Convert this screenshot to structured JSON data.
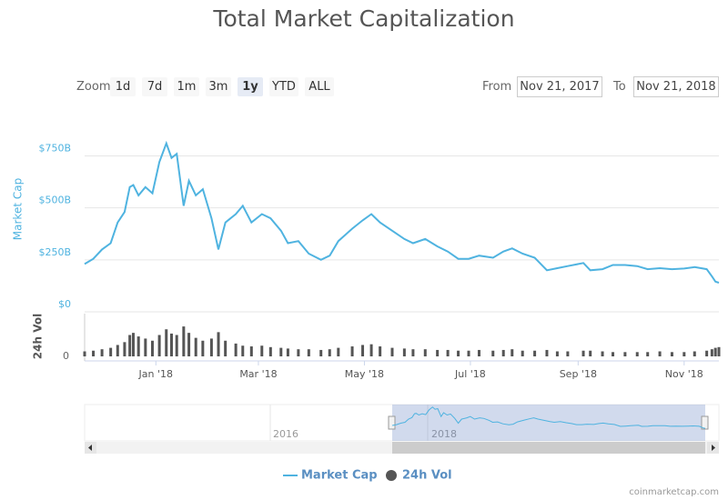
{
  "chart_data": [
    {
      "type": "line",
      "title": "Total Market Capitalization",
      "ylabel": "Market Cap",
      "grid": true,
      "xlim": [
        "2017-11-21",
        "2018-11-21"
      ],
      "ylim": [
        0,
        975
      ],
      "yticks": [
        {
          "value": 0,
          "label": "$0"
        },
        {
          "value": 250,
          "label": "$250B"
        },
        {
          "value": 500,
          "label": "$500B"
        },
        {
          "value": 750,
          "label": "$750B"
        }
      ],
      "x": [
        "2017-11-21",
        "2017-11-26",
        "2017-12-01",
        "2017-12-06",
        "2017-12-10",
        "2017-12-14",
        "2017-12-17",
        "2017-12-19",
        "2017-12-22",
        "2017-12-26",
        "2017-12-30",
        "2018-01-03",
        "2018-01-07",
        "2018-01-10",
        "2018-01-13",
        "2018-01-17",
        "2018-01-20",
        "2018-01-24",
        "2018-01-28",
        "2018-02-02",
        "2018-02-06",
        "2018-02-10",
        "2018-02-16",
        "2018-02-20",
        "2018-02-25",
        "2018-03-03",
        "2018-03-08",
        "2018-03-14",
        "2018-03-18",
        "2018-03-24",
        "2018-03-30",
        "2018-04-06",
        "2018-04-11",
        "2018-04-16",
        "2018-04-24",
        "2018-04-30",
        "2018-05-05",
        "2018-05-10",
        "2018-05-17",
        "2018-05-24",
        "2018-05-29",
        "2018-06-05",
        "2018-06-12",
        "2018-06-18",
        "2018-06-24",
        "2018-06-30",
        "2018-07-06",
        "2018-07-14",
        "2018-07-20",
        "2018-07-25",
        "2018-07-31",
        "2018-08-07",
        "2018-08-14",
        "2018-08-20",
        "2018-08-26",
        "2018-09-04",
        "2018-09-08",
        "2018-09-15",
        "2018-09-21",
        "2018-09-28",
        "2018-10-05",
        "2018-10-11",
        "2018-10-18",
        "2018-10-25",
        "2018-11-01",
        "2018-11-07",
        "2018-11-14",
        "2018-11-17",
        "2018-11-19",
        "2018-11-21"
      ],
      "series": [
        {
          "name": "Market Cap",
          "color": "#4fb3e0",
          "values": [
            230,
            255,
            300,
            330,
            430,
            480,
            600,
            610,
            560,
            600,
            570,
            720,
            810,
            740,
            760,
            510,
            630,
            560,
            590,
            450,
            300,
            430,
            470,
            510,
            430,
            470,
            450,
            390,
            330,
            340,
            280,
            250,
            270,
            340,
            400,
            440,
            470,
            430,
            390,
            350,
            330,
            350,
            315,
            290,
            255,
            255,
            270,
            260,
            290,
            305,
            280,
            260,
            200,
            210,
            220,
            235,
            200,
            205,
            225,
            225,
            220,
            205,
            210,
            205,
            208,
            215,
            205,
            170,
            145,
            140
          ]
        }
      ]
    },
    {
      "type": "bar",
      "ylabel": "24h Vol",
      "xlim": [
        "2017-11-21",
        "2018-11-21"
      ],
      "ylim": [
        0,
        60
      ],
      "yticks": [
        0
      ],
      "xticks": [
        {
          "value": "2018-01-01",
          "label": "Jan '18"
        },
        {
          "value": "2018-03-01",
          "label": "Mar '18"
        },
        {
          "value": "2018-05-01",
          "label": "May '18"
        },
        {
          "value": "2018-07-01",
          "label": "Jul '18"
        },
        {
          "value": "2018-09-01",
          "label": "Sep '18"
        },
        {
          "value": "2018-11-01",
          "label": "Nov '18"
        }
      ],
      "x": [
        "2017-11-21",
        "2017-11-26",
        "2017-12-01",
        "2017-12-06",
        "2017-12-10",
        "2017-12-14",
        "2017-12-17",
        "2017-12-19",
        "2017-12-22",
        "2017-12-26",
        "2017-12-30",
        "2018-01-03",
        "2018-01-07",
        "2018-01-10",
        "2018-01-13",
        "2018-01-17",
        "2018-01-20",
        "2018-01-24",
        "2018-01-28",
        "2018-02-02",
        "2018-02-06",
        "2018-02-10",
        "2018-02-16",
        "2018-02-20",
        "2018-02-25",
        "2018-03-03",
        "2018-03-08",
        "2018-03-14",
        "2018-03-18",
        "2018-03-24",
        "2018-03-30",
        "2018-04-06",
        "2018-04-11",
        "2018-04-16",
        "2018-04-24",
        "2018-04-30",
        "2018-05-05",
        "2018-05-10",
        "2018-05-17",
        "2018-05-24",
        "2018-05-29",
        "2018-06-05",
        "2018-06-12",
        "2018-06-18",
        "2018-06-24",
        "2018-06-30",
        "2018-07-06",
        "2018-07-14",
        "2018-07-20",
        "2018-07-25",
        "2018-07-31",
        "2018-08-07",
        "2018-08-14",
        "2018-08-20",
        "2018-08-26",
        "2018-09-04",
        "2018-09-08",
        "2018-09-15",
        "2018-09-21",
        "2018-09-28",
        "2018-10-05",
        "2018-10-11",
        "2018-10-18",
        "2018-10-25",
        "2018-11-01",
        "2018-11-07",
        "2018-11-14",
        "2018-11-17",
        "2018-11-19",
        "2018-11-21"
      ],
      "series": [
        {
          "name": "24h Vol",
          "color": "#555555",
          "values": [
            7,
            8,
            10,
            12,
            16,
            20,
            30,
            33,
            28,
            25,
            22,
            30,
            38,
            32,
            30,
            42,
            33,
            26,
            22,
            25,
            34,
            22,
            18,
            15,
            14,
            15,
            13,
            12,
            11,
            10,
            10,
            9,
            10,
            12,
            14,
            16,
            17,
            14,
            12,
            11,
            10,
            10,
            9,
            9,
            8,
            8,
            9,
            8,
            9,
            10,
            8,
            8,
            9,
            7,
            7,
            8,
            8,
            7,
            6,
            6,
            6,
            6,
            7,
            6,
            6,
            7,
            8,
            10,
            12,
            13
          ]
        }
      ]
    }
  ],
  "range_selector": {
    "label": "Zoom",
    "buttons": [
      "1d",
      "7d",
      "1m",
      "3m",
      "1y",
      "YTD",
      "ALL"
    ],
    "selected": 4,
    "from_label": "From",
    "from": "Nov 21, 2017",
    "to_label": "To",
    "to": "Nov 21, 2018"
  },
  "navigator": {
    "labels": [
      "2016",
      "2018"
    ]
  },
  "credit": "coinmarketcap.com"
}
